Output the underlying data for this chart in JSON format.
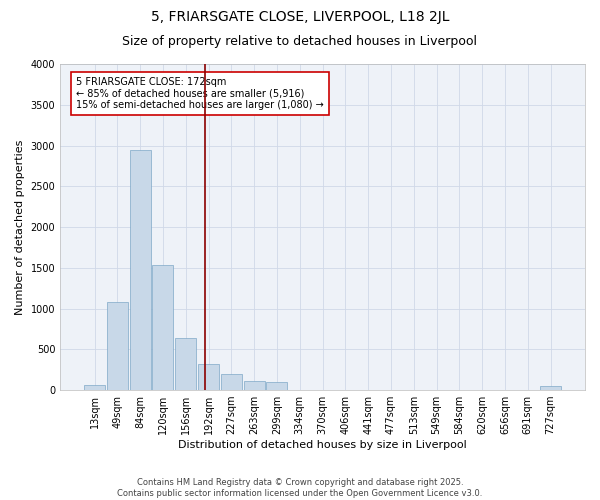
{
  "title_line1": "5, FRIARSGATE CLOSE, LIVERPOOL, L18 2JL",
  "title_line2": "Size of property relative to detached houses in Liverpool",
  "xlabel": "Distribution of detached houses by size in Liverpool",
  "ylabel": "Number of detached properties",
  "categories": [
    "13sqm",
    "49sqm",
    "84sqm",
    "120sqm",
    "156sqm",
    "192sqm",
    "227sqm",
    "263sqm",
    "299sqm",
    "334sqm",
    "370sqm",
    "406sqm",
    "441sqm",
    "477sqm",
    "513sqm",
    "549sqm",
    "584sqm",
    "620sqm",
    "656sqm",
    "691sqm",
    "727sqm"
  ],
  "values": [
    60,
    1080,
    2950,
    1530,
    640,
    320,
    200,
    110,
    100,
    0,
    0,
    0,
    0,
    0,
    0,
    0,
    0,
    0,
    0,
    0,
    55
  ],
  "bar_color": "#c8d8e8",
  "bar_edge_color": "#7fa8c8",
  "vline_x_index": 4.85,
  "vline_color": "#8b0000",
  "annotation_text": "5 FRIARSGATE CLOSE: 172sqm\n← 85% of detached houses are smaller (5,916)\n15% of semi-detached houses are larger (1,080) →",
  "annotation_box_color": "#ffffff",
  "annotation_box_edge": "#cc0000",
  "ylim": [
    0,
    4000
  ],
  "yticks": [
    0,
    500,
    1000,
    1500,
    2000,
    2500,
    3000,
    3500,
    4000
  ],
  "grid_color": "#d0d8e8",
  "bg_color": "#eef2f8",
  "footer_line1": "Contains HM Land Registry data © Crown copyright and database right 2025.",
  "footer_line2": "Contains public sector information licensed under the Open Government Licence v3.0.",
  "title_fontsize": 10,
  "subtitle_fontsize": 9,
  "axis_label_fontsize": 8,
  "tick_fontsize": 7,
  "annotation_fontsize": 7,
  "footer_fontsize": 6
}
